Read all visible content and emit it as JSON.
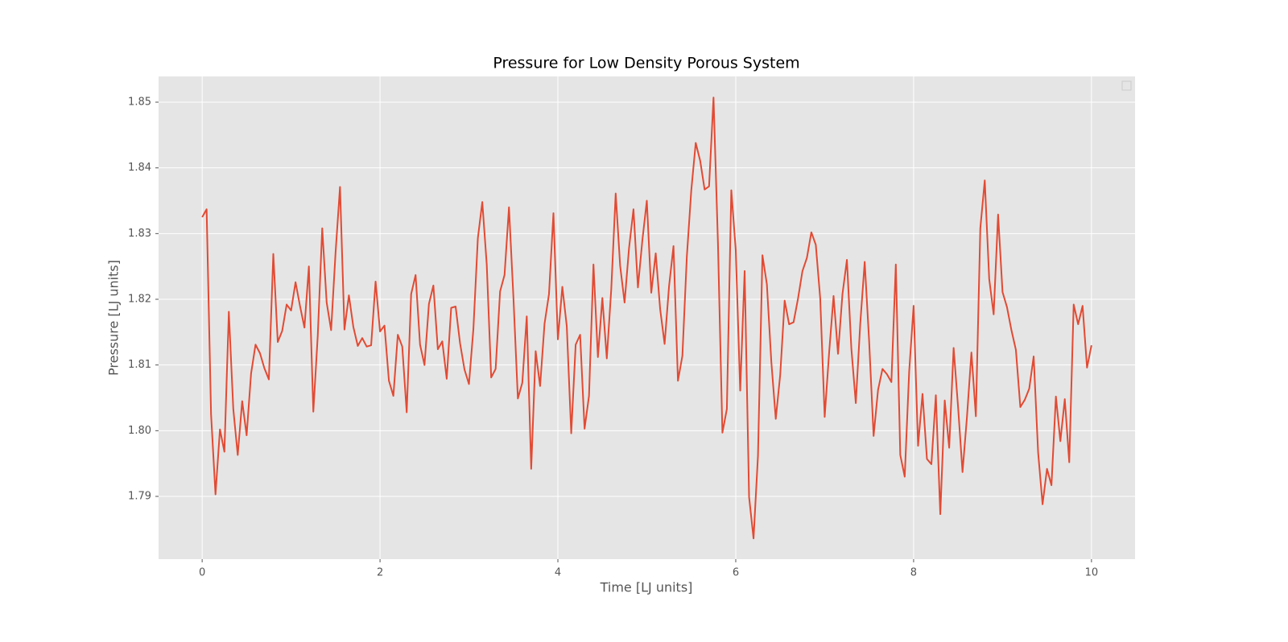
{
  "chart_data": {
    "type": "line",
    "title": "Pressure for Low Density Porous System",
    "xlabel": "Time [LJ units]",
    "ylabel": "Pressure [LJ units]",
    "xlim": [
      -0.49,
      10.49
    ],
    "ylim": [
      1.78045,
      1.85392
    ],
    "xticks": [
      0,
      2,
      4,
      6,
      8,
      10
    ],
    "yticks": [
      1.79,
      {
        "value": 1.8,
        "label": "1.80"
      },
      1.81,
      1.82,
      1.83,
      1.84,
      1.85
    ],
    "grid": true,
    "x": [
      0,
      0.05,
      0.1,
      0.15,
      0.2,
      0.25,
      0.3,
      0.35,
      0.4,
      0.45,
      0.5,
      0.55,
      0.6,
      0.65,
      0.7,
      0.75,
      0.8,
      0.85,
      0.9,
      0.95,
      1,
      1.05,
      1.1,
      1.15,
      1.2,
      1.25,
      1.3,
      1.35,
      1.4,
      1.45,
      1.5,
      1.55,
      1.6,
      1.65,
      1.7,
      1.75,
      1.8,
      1.85,
      1.9,
      1.95,
      2,
      2.05,
      2.1,
      2.15,
      2.2,
      2.25,
      2.3,
      2.35,
      2.4,
      2.45,
      2.5,
      2.55,
      2.6,
      2.65,
      2.7,
      2.75,
      2.8,
      2.85,
      2.9,
      2.95,
      3,
      3.05,
      3.1,
      3.15,
      3.2,
      3.25,
      3.3,
      3.35,
      3.4,
      3.45,
      3.5,
      3.55,
      3.6,
      3.65,
      3.7,
      3.75,
      3.8,
      3.85,
      3.9,
      3.95,
      4,
      4.05,
      4.1,
      4.15,
      4.2,
      4.25,
      4.3,
      4.35,
      4.4,
      4.45,
      4.5,
      4.55,
      4.6,
      4.65,
      4.7,
      4.75,
      4.8,
      4.85,
      4.9,
      4.95,
      5,
      5.05,
      5.1,
      5.15,
      5.2,
      5.25,
      5.3,
      5.35,
      5.4,
      5.45,
      5.5,
      5.55,
      5.6,
      5.65,
      5.7,
      5.75,
      5.8,
      5.85,
      5.9,
      5.95,
      6,
      6.05,
      6.1,
      6.15,
      6.2,
      6.25,
      6.3,
      6.35,
      6.4,
      6.45,
      6.5,
      6.55,
      6.6,
      6.65,
      6.7,
      6.75,
      6.8,
      6.85,
      6.9,
      6.95,
      7,
      7.05,
      7.1,
      7.15,
      7.2,
      7.25,
      7.3,
      7.35,
      7.4,
      7.45,
      7.5,
      7.55,
      7.6,
      7.65,
      7.7,
      7.75,
      7.8,
      7.85,
      7.9,
      7.95,
      8,
      8.05,
      8.1,
      8.15,
      8.2,
      8.25,
      8.3,
      8.35,
      8.4,
      8.45,
      8.5,
      8.55,
      8.6,
      8.65,
      8.7,
      8.75,
      8.8,
      8.85,
      8.9,
      8.95,
      9,
      9.05,
      9.1,
      9.15,
      9.2,
      9.25,
      9.3,
      9.35,
      9.4,
      9.45,
      9.5,
      9.55,
      9.6,
      9.65,
      9.7,
      9.75,
      9.8,
      9.85,
      9.9,
      9.95,
      10
    ],
    "series": [
      {
        "color": "#E24A33",
        "values": [
          1.8325,
          1.8337,
          1.8025,
          1.7903,
          1.8002,
          1.7968,
          1.8181,
          1.8033,
          1.7963,
          1.8045,
          1.7993,
          1.8087,
          1.8131,
          1.8118,
          1.8095,
          1.8078,
          1.8269,
          1.8135,
          1.8152,
          1.8192,
          1.8183,
          1.8226,
          1.819,
          1.8157,
          1.825,
          1.8029,
          1.8145,
          1.8308,
          1.8195,
          1.8153,
          1.8271,
          1.8371,
          1.8154,
          1.8206,
          1.8158,
          1.8129,
          1.8141,
          1.8128,
          1.813,
          1.8227,
          1.8151,
          1.816,
          1.8076,
          1.8053,
          1.8146,
          1.8128,
          1.8028,
          1.8208,
          1.8237,
          1.8131,
          1.81,
          1.8193,
          1.8221,
          1.8124,
          1.8136,
          1.8079,
          1.8187,
          1.8189,
          1.8133,
          1.8093,
          1.8071,
          1.8155,
          1.8293,
          1.8348,
          1.8253,
          1.8081,
          1.8094,
          1.8212,
          1.8237,
          1.834,
          1.8203,
          1.8049,
          1.8073,
          1.8174,
          1.7942,
          1.8121,
          1.8068,
          1.8163,
          1.8208,
          1.8331,
          1.8139,
          1.8219,
          1.8159,
          1.7996,
          1.8131,
          1.8146,
          1.8003,
          1.8053,
          1.8253,
          1.8112,
          1.8202,
          1.811,
          1.8215,
          1.8361,
          1.8251,
          1.8195,
          1.8278,
          1.8337,
          1.8218,
          1.829,
          1.835,
          1.821,
          1.827,
          1.8185,
          1.8132,
          1.822,
          1.8281,
          1.8076,
          1.8114,
          1.8265,
          1.8366,
          1.8438,
          1.8411,
          1.8367,
          1.8372,
          1.8507,
          1.8285,
          1.7997,
          1.8033,
          1.8366,
          1.8275,
          1.8061,
          1.8243,
          1.7899,
          1.7836,
          1.7962,
          1.8267,
          1.8223,
          1.8105,
          1.8018,
          1.8085,
          1.8198,
          1.8162,
          1.8165,
          1.8201,
          1.8243,
          1.8263,
          1.8302,
          1.8283,
          1.8201,
          1.8021,
          1.8119,
          1.8205,
          1.8117,
          1.8208,
          1.826,
          1.8125,
          1.8042,
          1.8163,
          1.8257,
          1.8136,
          1.7992,
          1.8062,
          1.8094,
          1.8086,
          1.8074,
          1.8253,
          1.7963,
          1.793,
          1.809,
          1.819,
          1.7977,
          1.8056,
          1.7957,
          1.7949,
          1.8054,
          1.7873,
          1.8046,
          1.7974,
          1.8126,
          1.8036,
          1.7937,
          1.8021,
          1.8119,
          1.8022,
          1.8308,
          1.8381,
          1.8231,
          1.8177,
          1.8329,
          1.8211,
          1.8188,
          1.8153,
          1.8123,
          1.8036,
          1.8047,
          1.8064,
          1.8113,
          1.7967,
          1.7888,
          1.7942,
          1.7917,
          1.8052,
          1.7984,
          1.8048,
          1.7952,
          1.8192,
          1.8162,
          1.819,
          1.8096,
          1.813
        ]
      }
    ]
  }
}
